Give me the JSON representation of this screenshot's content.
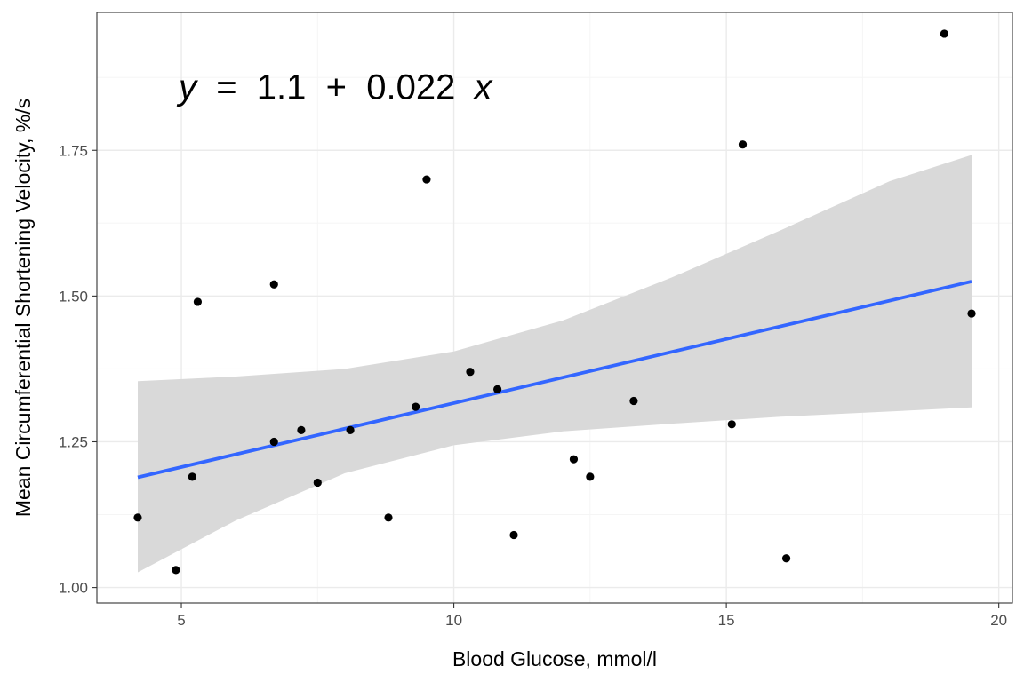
{
  "chart_data": {
    "type": "scatter",
    "xlabel": "Blood Glucose, mmol/l",
    "ylabel": "Mean Circumferential Shortening Velocity, %/s",
    "xlim": [
      3.45,
      20.25
    ],
    "ylim": [
      0.9735,
      1.9865
    ],
    "x_ticks": [
      5,
      10,
      15,
      20
    ],
    "x_tick_labels": [
      "5",
      "10",
      "15",
      "20"
    ],
    "x_minor_ticks": [
      7.5,
      12.5,
      17.5
    ],
    "y_ticks": [
      1.0,
      1.25,
      1.5,
      1.75
    ],
    "y_tick_labels": [
      "1.00",
      "1.25",
      "1.50",
      "1.75"
    ],
    "y_minor_ticks": [
      1.125,
      1.375,
      1.625,
      1.875
    ],
    "grid": true,
    "annotation": {
      "y_var": "y",
      "equals": " = ",
      "intercept": "1.1",
      "plus": " + ",
      "slope": "0.022",
      "x_var": "x",
      "at_x": 4.95,
      "at_y": 1.838
    },
    "points": [
      {
        "x": 4.2,
        "y": 1.12
      },
      {
        "x": 4.9,
        "y": 1.03
      },
      {
        "x": 5.2,
        "y": 1.19
      },
      {
        "x": 5.3,
        "y": 1.49
      },
      {
        "x": 6.7,
        "y": 1.52
      },
      {
        "x": 6.7,
        "y": 1.25
      },
      {
        "x": 7.2,
        "y": 1.27
      },
      {
        "x": 7.5,
        "y": 1.18
      },
      {
        "x": 8.1,
        "y": 1.27
      },
      {
        "x": 8.8,
        "y": 1.12
      },
      {
        "x": 9.3,
        "y": 1.31
      },
      {
        "x": 9.5,
        "y": 1.7
      },
      {
        "x": 10.3,
        "y": 1.37
      },
      {
        "x": 10.8,
        "y": 1.34
      },
      {
        "x": 11.1,
        "y": 1.09
      },
      {
        "x": 12.2,
        "y": 1.22
      },
      {
        "x": 12.5,
        "y": 1.19
      },
      {
        "x": 13.3,
        "y": 1.32
      },
      {
        "x": 15.1,
        "y": 1.28
      },
      {
        "x": 15.3,
        "y": 1.76
      },
      {
        "x": 16.1,
        "y": 1.05
      },
      {
        "x": 19.0,
        "y": 1.95
      },
      {
        "x": 19.5,
        "y": 1.47
      }
    ],
    "fit_line": {
      "color": "#3366FF",
      "x": [
        4.2,
        19.5
      ],
      "y": [
        1.189,
        1.525
      ]
    },
    "confidence_band": {
      "color": "#d9d9d9",
      "x": [
        4.2,
        6.0,
        8.0,
        10.0,
        12.0,
        14.0,
        16.0,
        18.0,
        19.5
      ],
      "lower": [
        1.026,
        1.115,
        1.196,
        1.244,
        1.268,
        1.281,
        1.293,
        1.302,
        1.309
      ],
      "upper": [
        1.354,
        1.362,
        1.375,
        1.405,
        1.458,
        1.532,
        1.613,
        1.697,
        1.742
      ]
    },
    "colors": {
      "points": "#000000",
      "grid_major": "#ebebeb",
      "grid_minor": "#f5f5f5",
      "panel_border": "#333333",
      "tick_text": "#4d4d4d"
    }
  }
}
